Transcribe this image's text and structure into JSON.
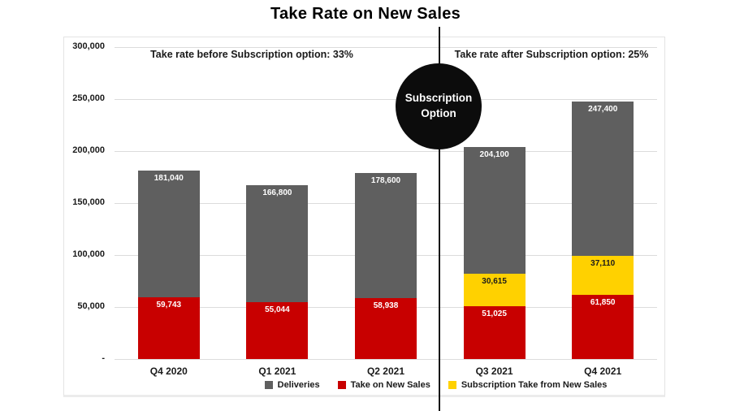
{
  "title": "Take Rate on New Sales",
  "annotations": {
    "before": "Take rate before Subscription option: 33%",
    "after": "Take rate after Subscription option: 25%"
  },
  "divider": {
    "circle_line1": "Subscription",
    "circle_line2": "Option",
    "line_color": "#161616",
    "circle_color": "#0c0c0c"
  },
  "chart_data": {
    "type": "bar",
    "subtype": "stacked",
    "title": "Take Rate on New Sales",
    "categories": [
      "Q4 2020",
      "Q1 2021",
      "Q2 2021",
      "Q3 2021",
      "Q4 2021"
    ],
    "y_axis": {
      "max": 300000,
      "step": 50000,
      "tick_labels": [
        "300,000",
        "250,000",
        "200,000",
        "150,000",
        "100,000",
        "50,000",
        "-"
      ],
      "grid": true
    },
    "series": [
      {
        "name": "Deliveries",
        "role": "total",
        "color": "#5f5f5f",
        "label_color": "#ffffff",
        "values": [
          181040,
          166800,
          178600,
          204100,
          247400
        ]
      },
      {
        "name": "Take on New Sales",
        "role": "stack",
        "color": "#c80000",
        "label_color": "#ffffff",
        "values": [
          59743,
          55044,
          58938,
          51025,
          61850
        ]
      },
      {
        "name": "Subscription Take from New Sales",
        "role": "stack",
        "color": "#ffd100",
        "label_color": "#1a1a1a",
        "values": [
          null,
          null,
          null,
          30615,
          37110
        ]
      }
    ],
    "legend": [
      {
        "label": "Deliveries",
        "color": "#5f5f5f"
      },
      {
        "label": "Take on New Sales",
        "color": "#c80000"
      },
      {
        "label": "Subscription Take from New Sales",
        "color": "#ffd100"
      }
    ],
    "legend_position": "bottom"
  }
}
